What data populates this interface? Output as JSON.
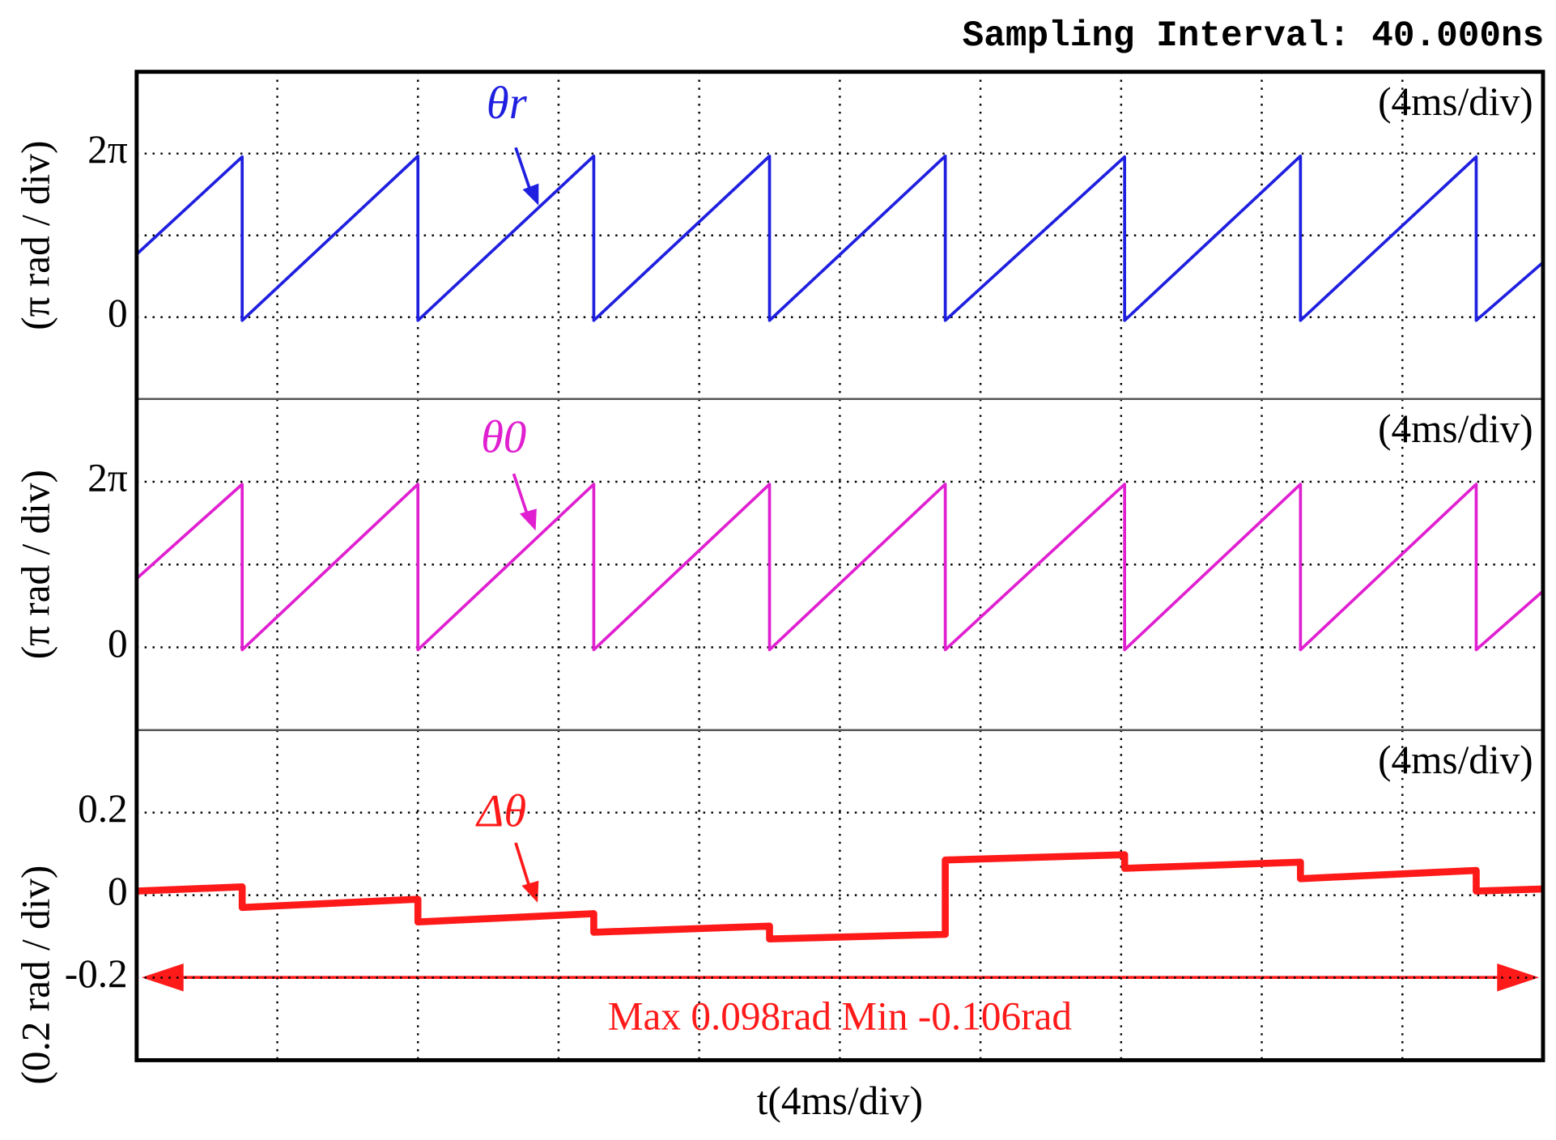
{
  "page": {
    "sampling_interval": "Sampling Interval:  40.000ns",
    "x_label": "t(4ms/div)"
  },
  "chart_data": [
    {
      "type": "line",
      "annotation": "(4ms/div)",
      "y_label": "(π rad / div)",
      "xlim": [
        0,
        40
      ],
      "xgrid": [
        4,
        8,
        12,
        16,
        20,
        24,
        28,
        32,
        36
      ],
      "ylim": [
        -1,
        3
      ],
      "ygrid": [
        0,
        1,
        2
      ],
      "yticks": [
        0,
        {
          "value": 2,
          "label": "2π"
        }
      ],
      "series": [
        {
          "name": "θr",
          "color": "#1f1fe0",
          "x": [
            0,
            3.0,
            3.0,
            8.0,
            8.0,
            13.0,
            13.0,
            18.0,
            18.0,
            23.0,
            23.0,
            28.1,
            28.1,
            33.1,
            33.1,
            38.1,
            38.1,
            40
          ],
          "values": [
            0.77,
            1.96,
            -0.04,
            1.97,
            -0.04,
            1.97,
            -0.04,
            1.97,
            -0.04,
            1.97,
            -0.04,
            1.96,
            -0.04,
            1.97,
            -0.04,
            1.96,
            -0.04,
            0.67
          ]
        }
      ]
    },
    {
      "type": "line",
      "annotation": "(4ms/div)",
      "y_label": "(π rad / div)",
      "xlim": [
        0,
        40
      ],
      "xgrid": [
        4,
        8,
        12,
        16,
        20,
        24,
        28,
        32,
        36
      ],
      "ylim": [
        -1,
        3
      ],
      "ygrid": [
        0,
        1,
        2
      ],
      "yticks": [
        0,
        {
          "value": 2,
          "label": "2π"
        }
      ],
      "series": [
        {
          "name": "θ0",
          "color": "#e020d0",
          "x": [
            0,
            3.0,
            3.0,
            8.0,
            8.0,
            13.0,
            13.0,
            18.0,
            18.0,
            23.0,
            23.0,
            28.1,
            28.1,
            33.1,
            33.1,
            38.1,
            38.1,
            40
          ],
          "values": [
            0.83,
            1.97,
            -0.03,
            1.97,
            -0.03,
            1.97,
            -0.03,
            1.97,
            -0.03,
            1.97,
            -0.03,
            1.97,
            -0.03,
            1.97,
            -0.03,
            1.97,
            -0.03,
            0.68
          ]
        }
      ]
    },
    {
      "type": "line",
      "annotation": "(4ms/div)",
      "y_label": "(0.2 rad / div)",
      "note": "Max 0.098rad  Min -0.106rad",
      "xlim": [
        0,
        40
      ],
      "xgrid": [
        4,
        8,
        12,
        16,
        20,
        24,
        28,
        32,
        36
      ],
      "ylim": [
        -0.4,
        0.4
      ],
      "ygrid": [
        -0.2,
        0,
        0.2
      ],
      "yticks": [
        -0.2,
        0,
        0.2
      ],
      "series": [
        {
          "name": "Δθ",
          "color": "#ff1a1a",
          "x": [
            0,
            3.0,
            3.0,
            8.0,
            8.0,
            13.0,
            13.0,
            18.0,
            18.0,
            23.0,
            23.0,
            28.1,
            28.1,
            33.1,
            33.1,
            38.1,
            38.1,
            40
          ],
          "values": [
            0.01,
            0.02,
            -0.03,
            -0.01,
            -0.065,
            -0.045,
            -0.09,
            -0.075,
            -0.106,
            -0.095,
            0.085,
            0.098,
            0.065,
            0.08,
            0.04,
            0.06,
            0.01,
            0.015
          ]
        }
      ]
    }
  ]
}
